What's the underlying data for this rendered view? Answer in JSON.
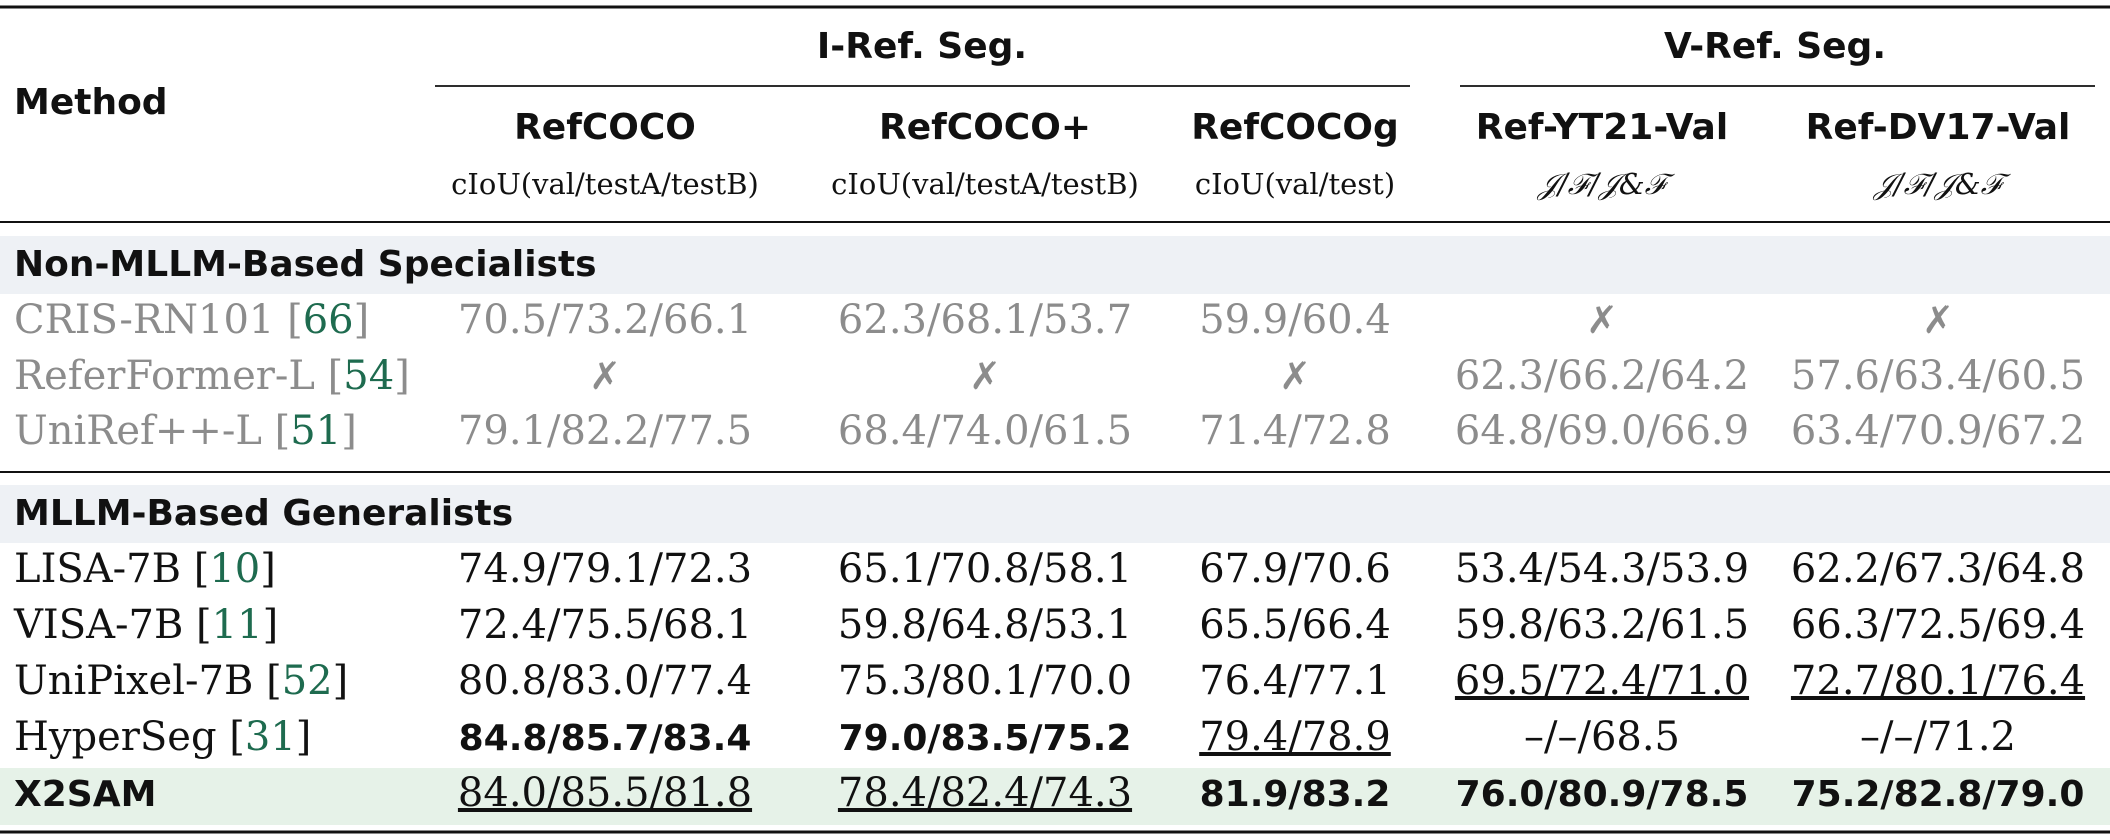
{
  "header": {
    "method": "Method",
    "group_iref": "I-Ref. Seg.",
    "group_vref": "V-Ref. Seg.",
    "datasets": [
      "RefCOCO",
      "RefCOCO+",
      "RefCOCOg",
      "Ref-YT21-Val",
      "Ref-DV17-Val"
    ],
    "metrics": [
      "cIoU(val/testA/testB)",
      "cIoU(val/testA/testB)",
      "cIoU(val/test)",
      "𝒥/ℱ/𝒥&ℱ",
      "𝒥/ℱ/𝒥&ℱ"
    ]
  },
  "sections": [
    {
      "title": "Non-MLLM-Based Specialists",
      "rows": [
        {
          "name": "CRIS-RN101",
          "ref": "66",
          "cells": [
            "70.5/73.2/66.1",
            "62.3/68.1/53.7",
            "59.9/60.4",
            "✗",
            "✗"
          ]
        },
        {
          "name": "ReferFormer-L",
          "ref": "54",
          "cells": [
            "✗",
            "✗",
            "✗",
            "62.3/66.2/64.2",
            "57.6/63.4/60.5"
          ]
        },
        {
          "name": "UniRef++-L",
          "ref": "51",
          "cells": [
            "79.1/82.2/77.5",
            "68.4/74.0/61.5",
            "71.4/72.8",
            "64.8/69.0/66.9",
            "63.4/70.9/67.2"
          ]
        }
      ]
    },
    {
      "title": "MLLM-Based Generalists",
      "rows": [
        {
          "name": "LISA-7B",
          "ref": "10",
          "cells": [
            "74.9/79.1/72.3",
            "65.1/70.8/58.1",
            "67.9/70.6",
            "53.4/54.3/53.9",
            "62.2/67.3/64.8"
          ]
        },
        {
          "name": "VISA-7B",
          "ref": "11",
          "cells": [
            "72.4/75.5/68.1",
            "59.8/64.8/53.1",
            "65.5/66.4",
            "59.8/63.2/61.5",
            "66.3/72.5/69.4"
          ]
        },
        {
          "name": "UniPixel-7B",
          "ref": "52",
          "cells": [
            "80.8/83.0/77.4",
            "75.3/80.1/70.0",
            "76.4/77.1",
            "69.5/72.4/71.0",
            "72.7/80.1/76.4"
          ]
        },
        {
          "name": "HyperSeg",
          "ref": "31",
          "cells": [
            "84.8/85.7/83.4",
            "79.0/83.5/75.2",
            "79.4/78.9",
            "–/–/68.5",
            "–/–/71.2"
          ]
        },
        {
          "name": "X2SAM",
          "ref": "",
          "cells": [
            "84.0/85.5/81.8",
            "78.4/82.4/74.3",
            "81.9/83.2",
            "76.0/80.9/78.5",
            "75.2/82.8/79.0"
          ]
        }
      ]
    }
  ],
  "styles": {
    "specialist_text_color": "#8c8c8c",
    "generalist_text_color": "#111111",
    "citation_color": "#1e6b4f",
    "section_band_color": "#eef1f5",
    "highlight_row_color": "#e6f2e8",
    "bold_cells": {
      "HyperSeg": [
        0,
        1
      ],
      "X2SAM": [
        2,
        3,
        4
      ]
    },
    "underlined_cells": {
      "UniPixel-7B": [
        3,
        4
      ],
      "HyperSeg": [
        2
      ],
      "X2SAM": [
        0,
        1
      ]
    }
  }
}
